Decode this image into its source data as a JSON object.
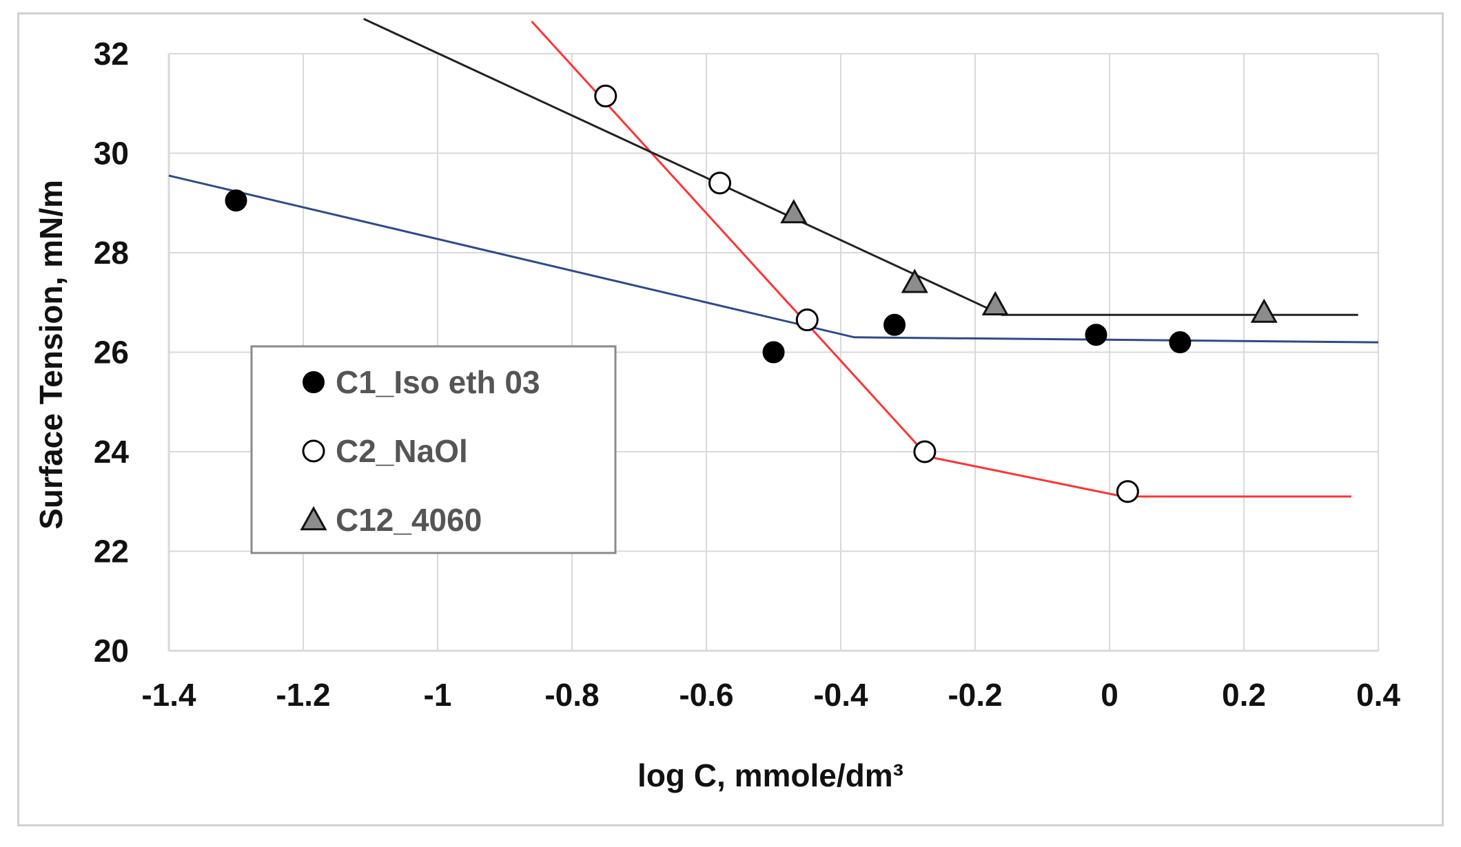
{
  "chart_data": {
    "type": "scatter",
    "title": "",
    "xlabel": "log C, mmole/dm³",
    "ylabel": "Surface Tension, mN/m",
    "xlim": [
      -1.4,
      0.4
    ],
    "ylim": [
      20,
      32
    ],
    "xticks": [
      -1.4,
      -1.2,
      -1,
      -0.8,
      -0.6,
      -0.4,
      -0.2,
      0,
      0.2,
      0.4
    ],
    "xtick_labels": [
      "-1.4",
      "-1.2",
      "-1",
      "-0.8",
      "-0.6",
      "-0.4",
      "-0.2",
      "0",
      "0.2",
      "0.4"
    ],
    "yticks": [
      20,
      22,
      24,
      26,
      28,
      30,
      32
    ],
    "ytick_labels": [
      "20",
      "22",
      "24",
      "26",
      "28",
      "30",
      "32"
    ],
    "grid": true,
    "legend_position": "left-center",
    "series": [
      {
        "name": "C1_Iso eth 03",
        "marker": "filled-circle",
        "marker_color": "#000000",
        "line_color": "#2e4a8c",
        "points": [
          {
            "x": -1.3,
            "y": 29.05
          },
          {
            "x": -0.5,
            "y": 26.0
          },
          {
            "x": -0.32,
            "y": 26.55
          },
          {
            "x": -0.02,
            "y": 26.35
          },
          {
            "x": 0.105,
            "y": 26.2
          }
        ],
        "fit_line": [
          {
            "x": -1.4,
            "y": 29.55
          },
          {
            "x": -0.38,
            "y": 26.3
          },
          {
            "x": 0.4,
            "y": 26.2
          }
        ]
      },
      {
        "name": "C2_NaOl",
        "marker": "open-circle",
        "marker_color": "#000000",
        "line_color": "#ff3333",
        "points": [
          {
            "x": -0.75,
            "y": 31.15
          },
          {
            "x": -0.58,
            "y": 29.4
          },
          {
            "x": -0.45,
            "y": 26.65
          },
          {
            "x": -0.275,
            "y": 24.0
          },
          {
            "x": 0.027,
            "y": 23.2
          }
        ],
        "fit_line": [
          {
            "x": -0.86,
            "y": 32.65
          },
          {
            "x": -0.27,
            "y": 23.9
          },
          {
            "x": 0.02,
            "y": 23.1
          },
          {
            "x": 0.36,
            "y": 23.1
          }
        ]
      },
      {
        "name": "C12_4060",
        "marker": "triangle",
        "marker_color": "#8c8c8c",
        "line_color": "#222222",
        "points": [
          {
            "x": -0.47,
            "y": 28.8
          },
          {
            "x": -0.29,
            "y": 27.4
          },
          {
            "x": -0.17,
            "y": 26.95
          },
          {
            "x": 0.23,
            "y": 26.8
          }
        ],
        "fit_line": [
          {
            "x": -1.11,
            "y": 32.7
          },
          {
            "x": -0.16,
            "y": 26.75
          },
          {
            "x": 0.37,
            "y": 26.75
          }
        ]
      }
    ]
  }
}
